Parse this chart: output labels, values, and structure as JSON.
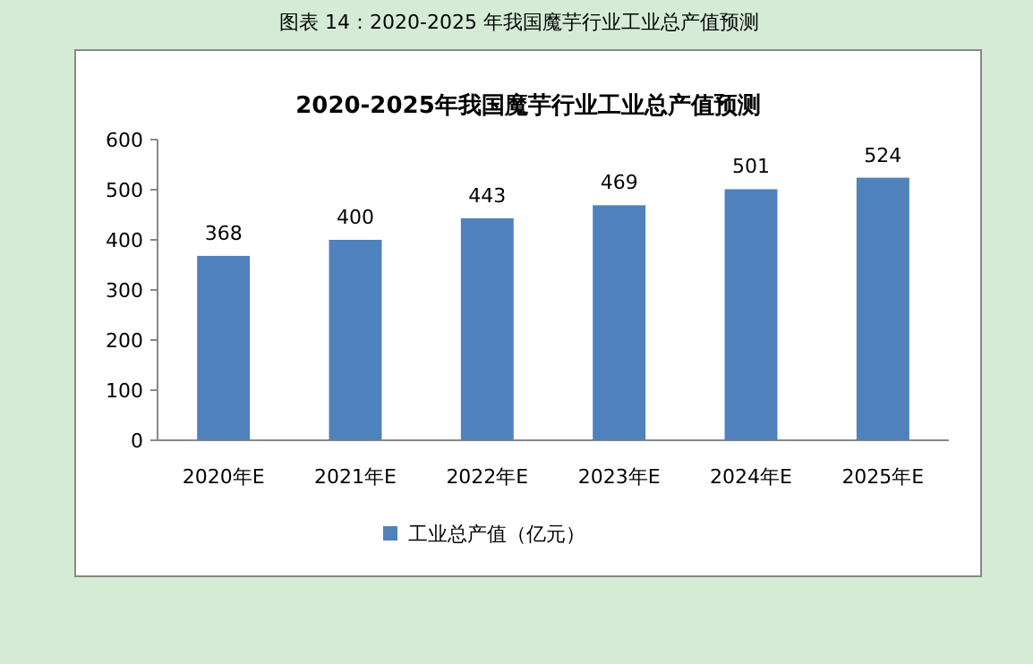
{
  "chart_data": {
    "type": "bar",
    "title": "2020-2025年我国魔芋行业工业总产值预测",
    "annotations": [
      "图表 14：2020-2025 年我国魔芋行业工业总产值预测"
    ],
    "categories": [
      "2020年E",
      "2021年E",
      "2022年E",
      "2023年E",
      "2024年E",
      "2025年E"
    ],
    "series": [
      {
        "name": "工业总产值（亿元）",
        "color": "#4f81bd",
        "values": [
          368,
          400,
          443,
          469,
          501,
          524
        ]
      }
    ],
    "ylim": [
      0,
      600
    ],
    "yticks": [
      0,
      100,
      200,
      300,
      400,
      500,
      600
    ],
    "data_labels": true,
    "legend": "bottom",
    "grid": false
  }
}
